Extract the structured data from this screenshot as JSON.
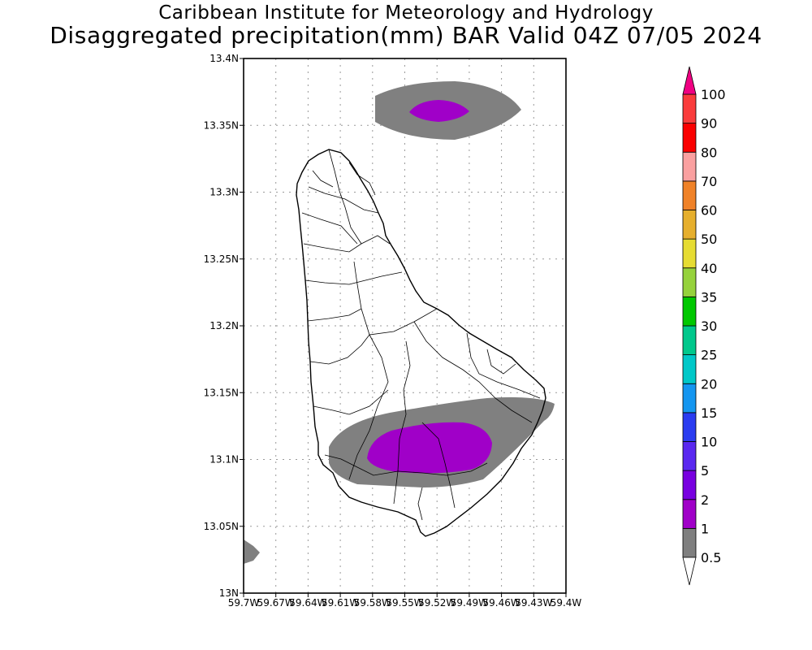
{
  "title": {
    "line1": "Caribbean Institute for Meteorology and Hydrology",
    "line2": "Disaggregated precipitation(mm) BAR Valid 04Z 07/05 2024"
  },
  "map": {
    "region": "Barbados",
    "lat_ticks": [
      "13N",
      "13.05N",
      "13.1N",
      "13.15N",
      "13.2N",
      "13.25N",
      "13.3N",
      "13.35N",
      "13.4N"
    ],
    "lon_ticks": [
      "59.7W",
      "59.67W",
      "59.64W",
      "59.61W",
      "59.58W",
      "59.55W",
      "59.52W",
      "59.49W",
      "59.46W",
      "59.43W",
      "59.4W"
    ],
    "lat_range": [
      13.0,
      13.4
    ],
    "lon_range": [
      -59.7,
      -59.4
    ]
  },
  "colorbar": {
    "labels": [
      "0.5",
      "1",
      "2",
      "5",
      "10",
      "15",
      "20",
      "25",
      "30",
      "35",
      "40",
      "50",
      "60",
      "70",
      "80",
      "90",
      "100"
    ],
    "colors": [
      "#7f7f7f",
      "#a000c8",
      "#7800e0",
      "#5a28f0",
      "#2a3cf0",
      "#1496f0",
      "#00c8c8",
      "#00c88c",
      "#00c800",
      "#96d23c",
      "#e6dc32",
      "#e6af2d",
      "#f08228",
      "#faa0a0",
      "#fa0000",
      "#fa3c3c",
      "#f00082"
    ]
  }
}
